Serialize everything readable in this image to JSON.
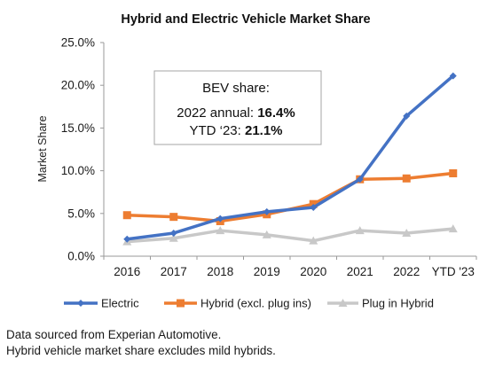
{
  "chart_data": {
    "type": "line",
    "title": "Hybrid and Electric Vehicle Market Share",
    "xlabel": "",
    "ylabel": "Market Share",
    "categories": [
      "2016",
      "2017",
      "2018",
      "2019",
      "2020",
      "2021",
      "2022",
      "YTD '23"
    ],
    "ylim": [
      0,
      25
    ],
    "yticks": [
      "0.0%",
      "5.0%",
      "10.0%",
      "15.0%",
      "20.0%",
      "25.0%"
    ],
    "grid": false,
    "legend_position": "bottom",
    "series": [
      {
        "name": "Electric",
        "color": "#4472c4",
        "marker": "diamond",
        "values": [
          2.0,
          2.7,
          4.4,
          5.2,
          5.7,
          9.0,
          16.4,
          21.1
        ]
      },
      {
        "name": "Hybrid (excl. plug ins)",
        "color": "#ed7d31",
        "marker": "square",
        "values": [
          4.8,
          4.6,
          4.1,
          4.9,
          6.1,
          9.0,
          9.1,
          9.7
        ]
      },
      {
        "name": "Plug in Hybrid",
        "color": "#c8c8c8",
        "marker": "triangle",
        "values": [
          1.7,
          2.1,
          3.0,
          2.5,
          1.8,
          3.0,
          2.7,
          3.2
        ]
      }
    ],
    "annotation": {
      "heading": "BEV share:",
      "line1_label": "2022 annual: ",
      "line1_value": "16.4%",
      "line2_label": "YTD ‘23: ",
      "line2_value": "21.1%"
    }
  },
  "footnotes": [
    "Data sourced from Experian Automotive.",
    "Hybrid vehicle market share excludes mild hybrids."
  ]
}
